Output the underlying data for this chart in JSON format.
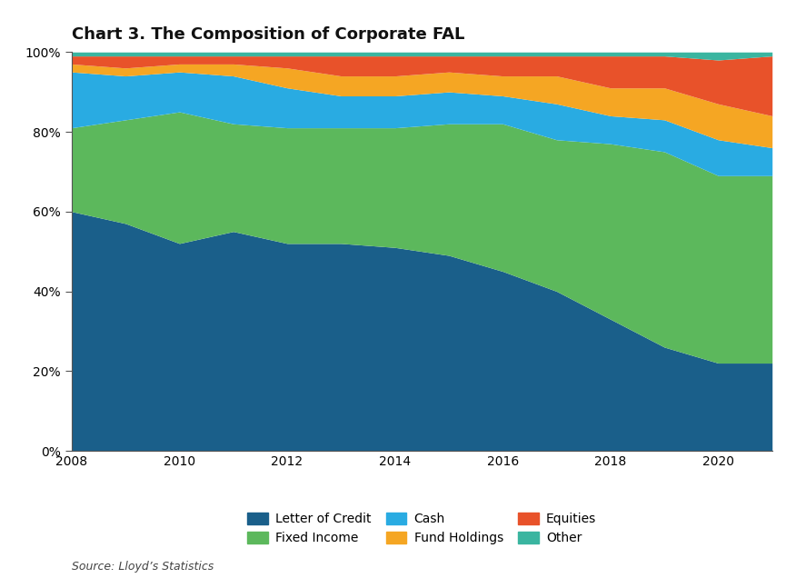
{
  "title": "Chart 3. The Composition of Corporate FAL",
  "source": "Source: Lloyd’s Statistics",
  "years": [
    2008,
    2009,
    2010,
    2011,
    2012,
    2013,
    2014,
    2015,
    2016,
    2017,
    2018,
    2019,
    2020,
    2021
  ],
  "series": {
    "Letter of Credit": [
      60,
      57,
      52,
      55,
      52,
      52,
      51,
      49,
      45,
      40,
      33,
      26,
      22,
      22
    ],
    "Fixed Income": [
      21,
      26,
      33,
      27,
      29,
      29,
      30,
      33,
      37,
      38,
      44,
      49,
      47,
      47
    ],
    "Cash": [
      14,
      11,
      10,
      12,
      10,
      8,
      8,
      8,
      7,
      9,
      7,
      8,
      9,
      7
    ],
    "Fund Holdings": [
      2,
      2,
      2,
      3,
      5,
      5,
      5,
      5,
      5,
      7,
      7,
      8,
      9,
      8
    ],
    "Equities": [
      2,
      3,
      2,
      2,
      3,
      5,
      5,
      4,
      5,
      5,
      8,
      8,
      11,
      15
    ],
    "Other": [
      1,
      1,
      1,
      1,
      1,
      1,
      1,
      1,
      1,
      1,
      1,
      1,
      2,
      1
    ]
  },
  "colors": {
    "Letter of Credit": "#1a5f8a",
    "Fixed Income": "#5cb85c",
    "Cash": "#29abe2",
    "Fund Holdings": "#f5a623",
    "Equities": "#e8522a",
    "Other": "#3ab5a0"
  },
  "stack_order": [
    "Letter of Credit",
    "Fixed Income",
    "Cash",
    "Fund Holdings",
    "Equities",
    "Other"
  ],
  "legend_row1": [
    "Letter of Credit",
    "Fixed Income",
    "Cash"
  ],
  "legend_row2": [
    "Fund Holdings",
    "Equities",
    "Other"
  ],
  "ylim": [
    0,
    100
  ],
  "yticks": [
    0,
    20,
    40,
    60,
    80,
    100
  ],
  "ytick_labels": [
    "0%",
    "20%",
    "40%",
    "60%",
    "80%",
    "100%"
  ],
  "xticks": [
    2008,
    2010,
    2012,
    2014,
    2016,
    2018,
    2020
  ],
  "background_color": "#ffffff",
  "title_fontsize": 13,
  "tick_fontsize": 10,
  "legend_fontsize": 10,
  "source_fontsize": 9
}
